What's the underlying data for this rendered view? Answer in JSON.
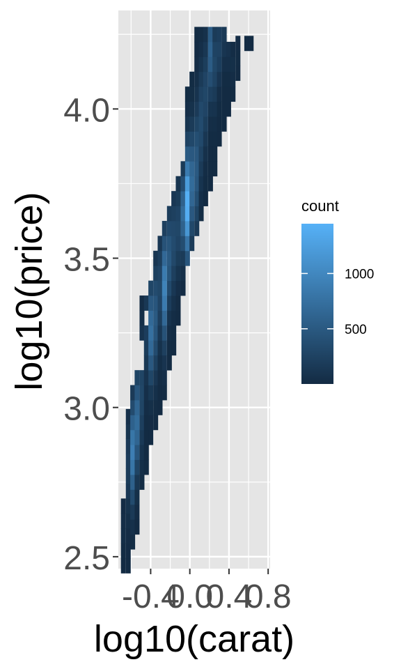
{
  "chart_data": {
    "type": "heatmap",
    "subtype": "2d-bin-count",
    "xlabel": "log10(carat)",
    "ylabel": "log10(price)",
    "xlim": [
      -0.73,
      0.82
    ],
    "ylim": [
      2.46,
      4.33
    ],
    "x_ticks": [
      -0.4,
      0.0,
      0.4,
      0.8
    ],
    "x_tick_labels": [
      "-0.4",
      "0.0",
      "0.4",
      "0.8"
    ],
    "y_ticks": [
      2.5,
      3.0,
      3.5,
      4.0
    ],
    "y_tick_labels": [
      "2.5",
      "3.0",
      "3.5",
      "4.0"
    ],
    "grid": true,
    "panel_background": "#E5E5E5",
    "grid_color": "#FFFFFF",
    "legend": {
      "title": "count",
      "position": "right",
      "breaks": [
        500,
        1000
      ],
      "break_labels": [
        "500",
        "1000"
      ],
      "min": 1,
      "max": 1450,
      "color_low": "#132B43",
      "color_high": "#56B1F7"
    },
    "bins": {
      "x_bin_width": 0.047,
      "y_bin_width": 0.05,
      "columns": [
        {
          "x": -0.68,
          "y_min": 2.47,
          "y_max": 2.72,
          "peak": 40,
          "peak_y": 2.6
        },
        {
          "x": -0.63,
          "y_min": 2.47,
          "y_max": 3.0,
          "peak": 180,
          "peak_y": 2.8
        },
        {
          "x": -0.585,
          "y_min": 2.55,
          "y_max": 3.1,
          "peak": 900,
          "peak_y": 2.85
        },
        {
          "x": -0.54,
          "y_min": 2.6,
          "y_max": 3.15,
          "peak": 700,
          "peak_y": 2.95
        },
        {
          "x": -0.49,
          "y_min": 2.75,
          "y_max": 3.4,
          "peak": 300,
          "peak_y": 3.05
        },
        {
          "x": -0.445,
          "y_min": 2.8,
          "y_max": 3.4,
          "peak": 200,
          "peak_y": 3.25
        },
        {
          "x": -0.4,
          "y_min": 2.9,
          "y_max": 3.45,
          "peak": 750,
          "peak_y": 3.25
        },
        {
          "x": -0.35,
          "y_min": 2.95,
          "y_max": 3.55,
          "peak": 500,
          "peak_y": 3.3
        },
        {
          "x": -0.305,
          "y_min": 3.0,
          "y_max": 3.6,
          "peak": 300,
          "peak_y": 3.4
        },
        {
          "x": -0.26,
          "y_min": 3.05,
          "y_max": 3.65,
          "peak": 950,
          "peak_y": 3.4
        },
        {
          "x": -0.21,
          "y_min": 3.15,
          "y_max": 3.7,
          "peak": 500,
          "peak_y": 3.5
        },
        {
          "x": -0.165,
          "y_min": 3.2,
          "y_max": 3.75,
          "peak": 350,
          "peak_y": 3.55
        },
        {
          "x": -0.12,
          "y_min": 3.3,
          "y_max": 3.8,
          "peak": 300,
          "peak_y": 3.6
        },
        {
          "x": -0.07,
          "y_min": 3.4,
          "y_max": 3.85,
          "peak": 700,
          "peak_y": 3.65
        },
        {
          "x": -0.025,
          "y_min": 3.5,
          "y_max": 4.1,
          "peak": 1450,
          "peak_y": 3.68
        },
        {
          "x": 0.02,
          "y_min": 3.55,
          "y_max": 4.15,
          "peak": 700,
          "peak_y": 3.75
        },
        {
          "x": 0.07,
          "y_min": 3.6,
          "y_max": 4.28,
          "peak": 500,
          "peak_y": 3.8
        },
        {
          "x": 0.115,
          "y_min": 3.65,
          "y_max": 4.28,
          "peak": 350,
          "peak_y": 3.95
        },
        {
          "x": 0.16,
          "y_min": 3.7,
          "y_max": 4.28,
          "peak": 300,
          "peak_y": 4.05
        },
        {
          "x": 0.21,
          "y_min": 3.75,
          "y_max": 4.28,
          "peak": 600,
          "peak_y": 4.2
        },
        {
          "x": 0.255,
          "y_min": 3.8,
          "y_max": 4.28,
          "peak": 300,
          "peak_y": 4.15
        },
        {
          "x": 0.3,
          "y_min": 3.9,
          "y_max": 4.28,
          "peak": 250,
          "peak_y": 4.2
        },
        {
          "x": 0.35,
          "y_min": 3.95,
          "y_max": 4.28,
          "peak": 150,
          "peak_y": 4.25
        },
        {
          "x": 0.395,
          "y_min": 4.0,
          "y_max": 4.25,
          "peak": 80,
          "peak_y": 4.2
        },
        {
          "x": 0.44,
          "y_min": 4.05,
          "y_max": 4.25,
          "peak": 50,
          "peak_y": 4.15
        },
        {
          "x": 0.49,
          "y_min": 4.12,
          "y_max": 4.25,
          "peak": 20,
          "peak_y": 4.2
        },
        {
          "x": 0.58,
          "y_min": 4.22,
          "y_max": 4.28,
          "peak": 10,
          "peak_y": 4.25
        },
        {
          "x": 0.625,
          "y_min": 4.22,
          "y_max": 4.28,
          "peak": 10,
          "peak_y": 4.25
        }
      ],
      "gaps": [
        {
          "x": -0.49,
          "y": [
            3.15,
            3.2
          ]
        },
        {
          "x": -0.445,
          "y": [
            3.3
          ]
        },
        {
          "x": -0.35,
          "y": [
            3.18
          ]
        },
        {
          "x": 0.35,
          "y": [
            3.75,
            3.8
          ]
        },
        {
          "x": 0.395,
          "y": [
            3.8,
            3.85,
            3.9,
            3.95
          ]
        },
        {
          "x": -0.68,
          "y": [
            2.5
          ]
        }
      ]
    }
  }
}
